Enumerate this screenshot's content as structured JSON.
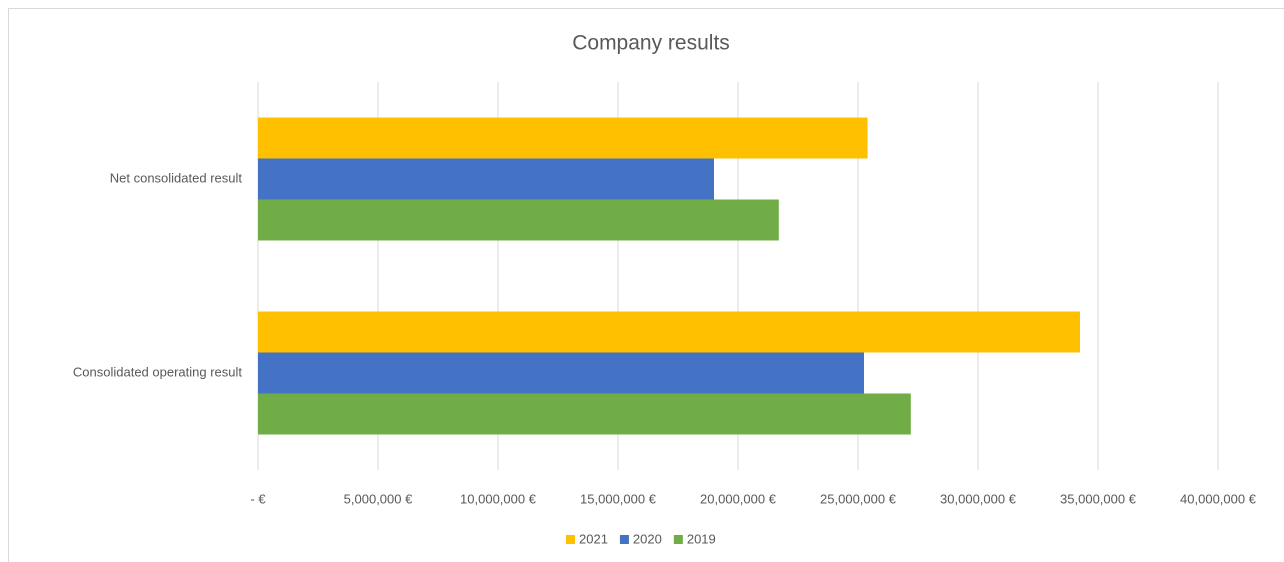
{
  "chart_data": {
    "type": "bar",
    "orientation": "horizontal",
    "title": "Company results",
    "categories": [
      "Net consolidated result",
      "Consolidated operating result"
    ],
    "series": [
      {
        "name": "2021",
        "color": "#ffc000",
        "values": [
          25400000,
          34250000
        ]
      },
      {
        "name": "2020",
        "color": "#4472c4",
        "values": [
          19000000,
          25250000
        ]
      },
      {
        "name": "2019",
        "color": "#70ad47",
        "values": [
          21700000,
          27200000
        ]
      }
    ],
    "xlim": [
      0,
      40000000
    ],
    "xticks": [
      {
        "value": 0,
        "label": "-  €"
      },
      {
        "value": 5000000,
        "label": "5,000,000 €"
      },
      {
        "value": 10000000,
        "label": "10,000,000 €"
      },
      {
        "value": 15000000,
        "label": "15,000,000 €"
      },
      {
        "value": 20000000,
        "label": "20,000,000 €"
      },
      {
        "value": 25000000,
        "label": "25,000,000 €"
      },
      {
        "value": 30000000,
        "label": "30,000,000 €"
      },
      {
        "value": 35000000,
        "label": "35,000,000 €"
      },
      {
        "value": 40000000,
        "label": "40,000,000 €"
      }
    ],
    "grid": true,
    "legend": "bottom"
  }
}
